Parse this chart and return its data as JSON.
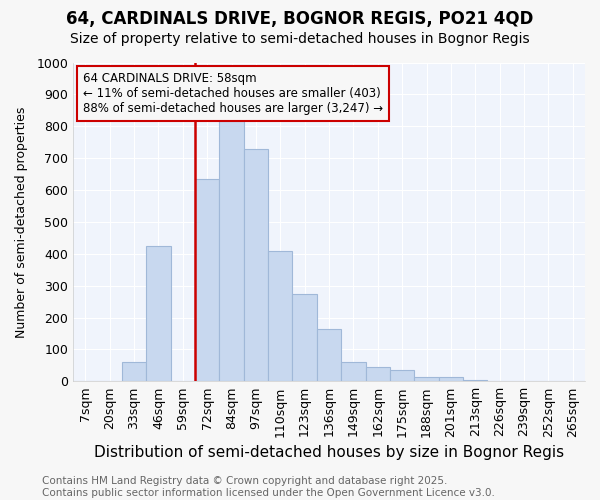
{
  "title1": "64, CARDINALS DRIVE, BOGNOR REGIS, PO21 4QD",
  "title2": "Size of property relative to semi-detached houses in Bognor Regis",
  "xlabel": "Distribution of semi-detached houses by size in Bognor Regis",
  "ylabel": "Number of semi-detached properties",
  "categories": [
    "7sqm",
    "20sqm",
    "33sqm",
    "46sqm",
    "59sqm",
    "72sqm",
    "84sqm",
    "97sqm",
    "110sqm",
    "123sqm",
    "136sqm",
    "149sqm",
    "162sqm",
    "175sqm",
    "188sqm",
    "201sqm",
    "213sqm",
    "226sqm",
    "239sqm",
    "252sqm",
    "265sqm"
  ],
  "values": [
    0,
    0,
    60,
    425,
    0,
    635,
    815,
    730,
    410,
    275,
    165,
    60,
    45,
    35,
    15,
    15,
    5,
    0,
    0,
    0,
    0
  ],
  "bar_color": "#c8d8ef",
  "bar_edge_color": "#a0b8d8",
  "highlight_index": 4,
  "highlight_color": "#cc0000",
  "annotation_text": "64 CARDINALS DRIVE: 58sqm\n← 11% of semi-detached houses are smaller (403)\n88% of semi-detached houses are larger (3,247) →",
  "ylim": [
    0,
    1000
  ],
  "yticks": [
    0,
    100,
    200,
    300,
    400,
    500,
    600,
    700,
    800,
    900,
    1000
  ],
  "footer_text": "Contains HM Land Registry data © Crown copyright and database right 2025.\nContains public sector information licensed under the Open Government Licence v3.0.",
  "background_color": "#f7f7f7",
  "plot_bg_color": "#f0f4fc",
  "grid_color": "#ffffff",
  "title1_fontsize": 12,
  "title2_fontsize": 10,
  "xlabel_fontsize": 11,
  "ylabel_fontsize": 9,
  "tick_fontsize": 9,
  "footer_fontsize": 7.5
}
